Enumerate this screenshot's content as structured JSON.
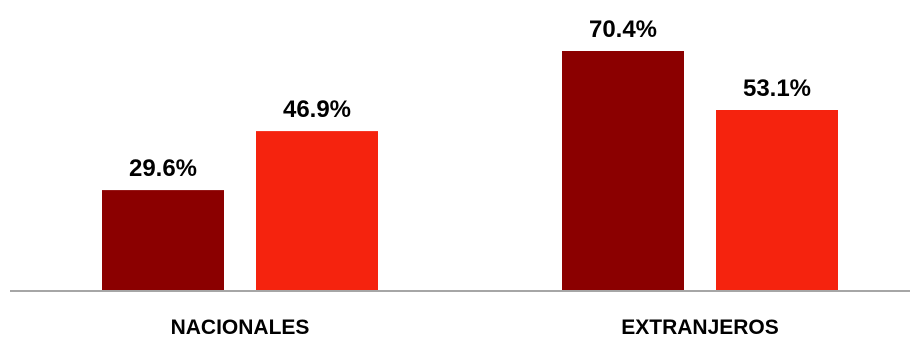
{
  "chart_data": {
    "type": "bar",
    "title": "",
    "xlabel": "",
    "ylabel": "",
    "categories": [
      "NACIONALES",
      "EXTRANJEROS"
    ],
    "series": [
      {
        "color": "#8B0000",
        "values": [
          29.6,
          70.4
        ],
        "labels": [
          "29.6%",
          "70.4%"
        ]
      },
      {
        "color": "#F5230E",
        "values": [
          46.9,
          53.1
        ],
        "labels": [
          "46.9%",
          "53.1%"
        ]
      }
    ],
    "ylim": [
      0,
      80
    ],
    "grid": false,
    "legend": "none",
    "baseline_color": "#A6A6A6"
  }
}
